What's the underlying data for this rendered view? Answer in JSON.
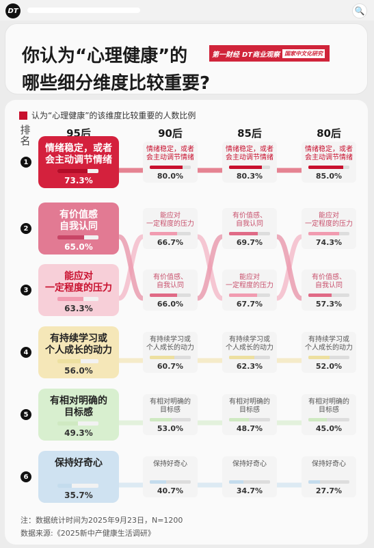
{
  "app": {
    "logo_text": "DT",
    "search_icon": "🔍"
  },
  "header": {
    "title_line1": "你认为“心理健康”的",
    "title_line2": "哪些细分维度比较重要?",
    "brand": {
      "partner1": "第一财经",
      "partner2": "DT商业观察",
      "partner3": "国家中文化研究"
    }
  },
  "legend": {
    "label": "认为“心理健康”的该维度比较重要的人数比例",
    "color": "#c8102e"
  },
  "rank_header": "排名",
  "generations": [
    "95后",
    "90后",
    "85后",
    "80后"
  ],
  "ranks": [
    "1",
    "2",
    "3",
    "4",
    "5",
    "6"
  ],
  "dimensions": {
    "emotion": {
      "label_95": "情绪稳定，或者\n会主动调节情绪",
      "label_small": "情绪稳定，或者\n会主动调节情绪",
      "color": "#d4213d",
      "track": "#c8102e",
      "bg_95": "#d4213d",
      "text_95": "#ffffff"
    },
    "value": {
      "label_95": "有价值感\n自我认同",
      "label_small": "有价值感、\n自我认同",
      "color": "#e06a86",
      "track": "#e06a86",
      "bg_95": "#e27a93",
      "text_95": "#ffffff"
    },
    "pressure": {
      "label_95": "能应对\n一定程度的压力",
      "label_small": "能应对\n一定程度的压力",
      "color": "#f19bb0",
      "track": "#f19bb0",
      "bg_95": "#f7cfd8",
      "text_95": "#c8102e"
    },
    "learning": {
      "label_95": "有持续学习或\n个人成长的动力",
      "label_small": "有持续学习或\n个人成长的动力",
      "color": "#f0dfa0",
      "track": "#ede0a0",
      "bg_95": "#f5e7b8",
      "text_95": "#222222"
    },
    "goal": {
      "label_95": "有相对明确的\n目标感",
      "label_small": "有相对明确的\n目标感",
      "color": "#cfe9c2",
      "track": "#cfe9c2",
      "bg_95": "#d8efcf",
      "text_95": "#222222"
    },
    "curiosity": {
      "label_95": "保持好奇心",
      "label_small": "保持好奇心",
      "color": "#c4dced",
      "track": "#c4dced",
      "bg_95": "#cfe2f1",
      "text_95": "#222222"
    }
  },
  "chart_data": {
    "type": "table",
    "title": "你认为“心理健康”的哪些细分维度比较重要?",
    "legend": "认为“心理健康”的该维度比较重要的人数比例",
    "columns": [
      "95后",
      "90后",
      "85后",
      "80后"
    ],
    "rows": [
      {
        "rank": 1,
        "cells": [
          {
            "dim": "emotion",
            "value": 73.3
          },
          {
            "dim": "emotion",
            "value": 80.0
          },
          {
            "dim": "emotion",
            "value": 80.3
          },
          {
            "dim": "emotion",
            "value": 85.0
          }
        ]
      },
      {
        "rank": 2,
        "cells": [
          {
            "dim": "value",
            "value": 65.0
          },
          {
            "dim": "pressure",
            "value": 66.7
          },
          {
            "dim": "value",
            "value": 69.7
          },
          {
            "dim": "pressure",
            "value": 74.3
          }
        ]
      },
      {
        "rank": 3,
        "cells": [
          {
            "dim": "pressure",
            "value": 63.3
          },
          {
            "dim": "value",
            "value": 66.0
          },
          {
            "dim": "pressure",
            "value": 67.7
          },
          {
            "dim": "value",
            "value": 57.3
          }
        ]
      },
      {
        "rank": 4,
        "cells": [
          {
            "dim": "learning",
            "value": 56.0
          },
          {
            "dim": "learning",
            "value": 60.7
          },
          {
            "dim": "learning",
            "value": 62.3
          },
          {
            "dim": "learning",
            "value": 52.0
          }
        ]
      },
      {
        "rank": 5,
        "cells": [
          {
            "dim": "goal",
            "value": 49.3
          },
          {
            "dim": "goal",
            "value": 53.0
          },
          {
            "dim": "goal",
            "value": 48.7
          },
          {
            "dim": "goal",
            "value": 45.0
          }
        ]
      },
      {
        "rank": 6,
        "cells": [
          {
            "dim": "curiosity",
            "value": 35.7
          },
          {
            "dim": "curiosity",
            "value": 40.7
          },
          {
            "dim": "curiosity",
            "value": 34.7
          },
          {
            "dim": "curiosity",
            "value": 27.7
          }
        ]
      }
    ]
  },
  "footer": {
    "note": "注：数据统计时间为2025年9月23日，N=1200",
    "source": "数据来源:《2025新中产健康生活调研》"
  }
}
